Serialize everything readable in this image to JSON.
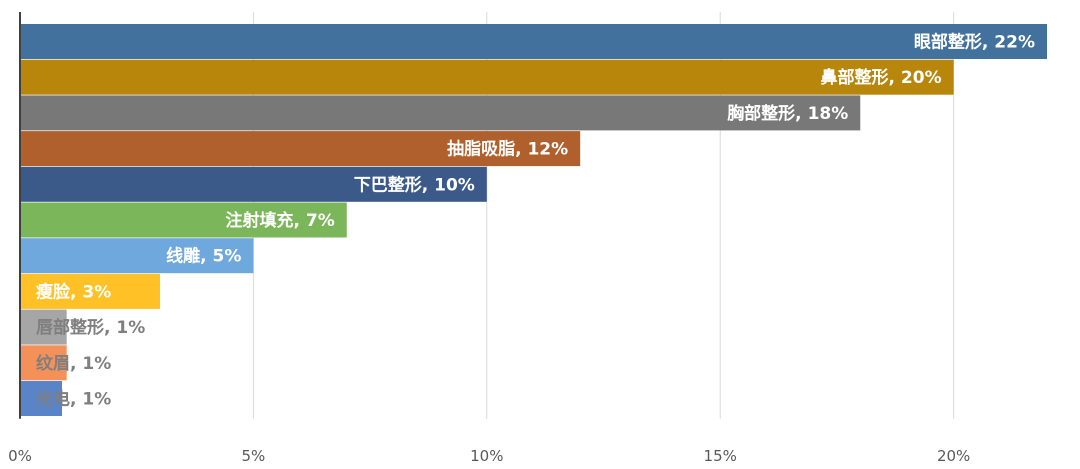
{
  "chart_data": {
    "type": "bar",
    "orientation": "horizontal",
    "categories": [
      "眼部整形",
      "鼻部整形",
      "胸部整形",
      "抽脂吸脂",
      "下巴整形",
      "注射填充",
      "线雕",
      "瘦脸",
      "唇部整形",
      "纹眉",
      "光电"
    ],
    "values": [
      22,
      20,
      18,
      12,
      10,
      7,
      5,
      3,
      1,
      1,
      0.9
    ],
    "data_labels": [
      "眼部整形, 22%",
      "鼻部整形, 20%",
      "胸部整形, 18%",
      "抽脂吸脂, 12%",
      "下巴整形, 10%",
      "注射填充, 7%",
      "线雕, 5%",
      "瘦脸, 3%",
      "唇部整形, 1%",
      "纹眉, 1%",
      "光电, 1%"
    ],
    "colors": [
      "#41719c",
      "#b8860b",
      "#787878",
      "#b0602c",
      "#3b5a8a",
      "#7cb65a",
      "#6fa8dc",
      "#ffc125",
      "#a6a6a6",
      "#f4915a",
      "#5a84c8"
    ],
    "label_colors": [
      "#ffffff",
      "#ffffff",
      "#ffffff",
      "#ffffff",
      "#ffffff",
      "#ffffff",
      "#ffffff",
      "#ffffff",
      "#7f7f7f",
      "#7f7f7f",
      "#7f7f7f"
    ],
    "x_ticks": [
      "0%",
      "5%",
      "10%",
      "15%",
      "20%"
    ],
    "x_tick_values": [
      0,
      5,
      10,
      15,
      20
    ],
    "xlim": [
      0,
      22.3
    ],
    "grid": true,
    "legend": "none",
    "title": "",
    "xlabel": "",
    "ylabel": ""
  }
}
